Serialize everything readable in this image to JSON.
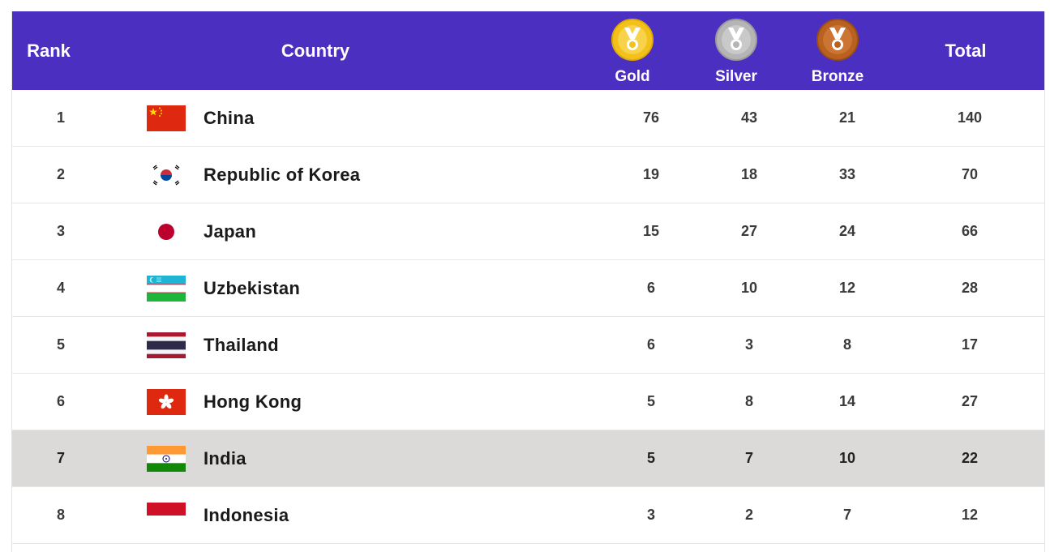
{
  "header": {
    "rank": "Rank",
    "country": "Country",
    "gold": "Gold",
    "silver": "Silver",
    "bronze": "Bronze",
    "total": "Total"
  },
  "colors": {
    "header_bg": "#4a2fc1",
    "highlight_row": "#dcd9d9",
    "gold": "#f2c21b",
    "silver": "#b5b5b5",
    "bronze": "#b9611f"
  },
  "rows": [
    {
      "rank": "1",
      "country": "China",
      "flag": "china-flag-icon",
      "gold": "76",
      "silver": "43",
      "bronze": "21",
      "total": "140"
    },
    {
      "rank": "2",
      "country": "Republic of Korea",
      "flag": "korea-flag-icon",
      "gold": "19",
      "silver": "18",
      "bronze": "33",
      "total": "70"
    },
    {
      "rank": "3",
      "country": "Japan",
      "flag": "japan-flag-icon",
      "gold": "15",
      "silver": "27",
      "bronze": "24",
      "total": "66"
    },
    {
      "rank": "4",
      "country": "Uzbekistan",
      "flag": "uzbekistan-flag-icon",
      "gold": "6",
      "silver": "10",
      "bronze": "12",
      "total": "28"
    },
    {
      "rank": "5",
      "country": "Thailand",
      "flag": "thailand-flag-icon",
      "gold": "6",
      "silver": "3",
      "bronze": "8",
      "total": "17"
    },
    {
      "rank": "6",
      "country": "Hong Kong",
      "flag": "hong-kong-flag-icon",
      "gold": "5",
      "silver": "8",
      "bronze": "14",
      "total": "27"
    },
    {
      "rank": "7",
      "country": "India",
      "flag": "india-flag-icon",
      "gold": "5",
      "silver": "7",
      "bronze": "10",
      "total": "22",
      "highlighted": true
    },
    {
      "rank": "8",
      "country": "Indonesia",
      "flag": "indonesia-flag-icon",
      "gold": "3",
      "silver": "2",
      "bronze": "7",
      "total": "12"
    }
  ]
}
